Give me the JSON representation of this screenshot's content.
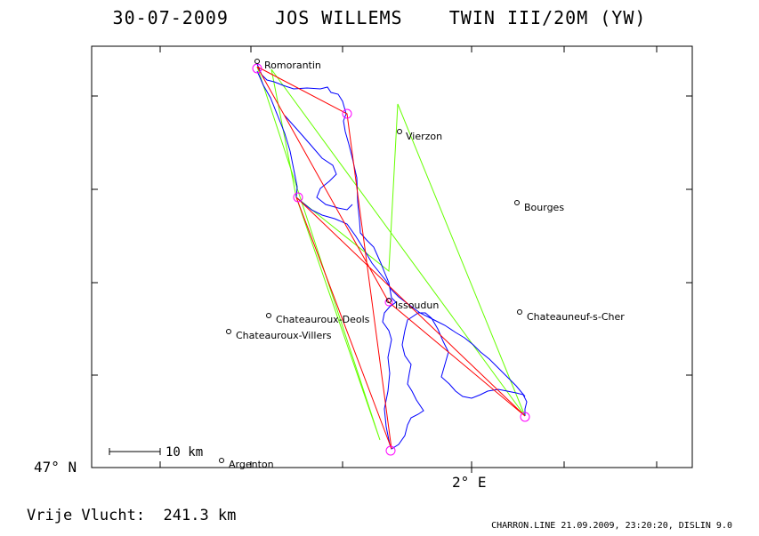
{
  "header": {
    "title": "30-07-2009    JOS WILLEMS    TWIN III/20M (YW)"
  },
  "map": {
    "frame_color": "#000000",
    "lat_label": "47° N",
    "lon_label": "2° E",
    "scale_label": "10 km",
    "towns": [
      {
        "name": "Romorantin",
        "icon": "circle-marker"
      },
      {
        "name": "Vierzon",
        "icon": "circle-marker"
      },
      {
        "name": "Bourges",
        "icon": "circle-marker"
      },
      {
        "name": "Issoudun",
        "icon": "circle-marker"
      },
      {
        "name": "Chateauroux-Deols",
        "icon": "circle-marker"
      },
      {
        "name": "Chateauroux-Villers",
        "icon": "circle-marker"
      },
      {
        "name": "Chateauneuf-s-Cher",
        "icon": "circle-marker"
      },
      {
        "name": "Argenton",
        "icon": "circle-marker"
      }
    ],
    "colors": {
      "flight_track": "#0000ff",
      "task_legs": "#ff0000",
      "alt_legs": "#66ff00",
      "turnpoints": "#ff00ff"
    }
  },
  "summary": {
    "distance_text": "Vrije Vlucht:  241.3 km"
  },
  "footer": {
    "credit": "CHARRON.LINE 21.09.2009, 23:20:20, DISLIN 9.0"
  }
}
